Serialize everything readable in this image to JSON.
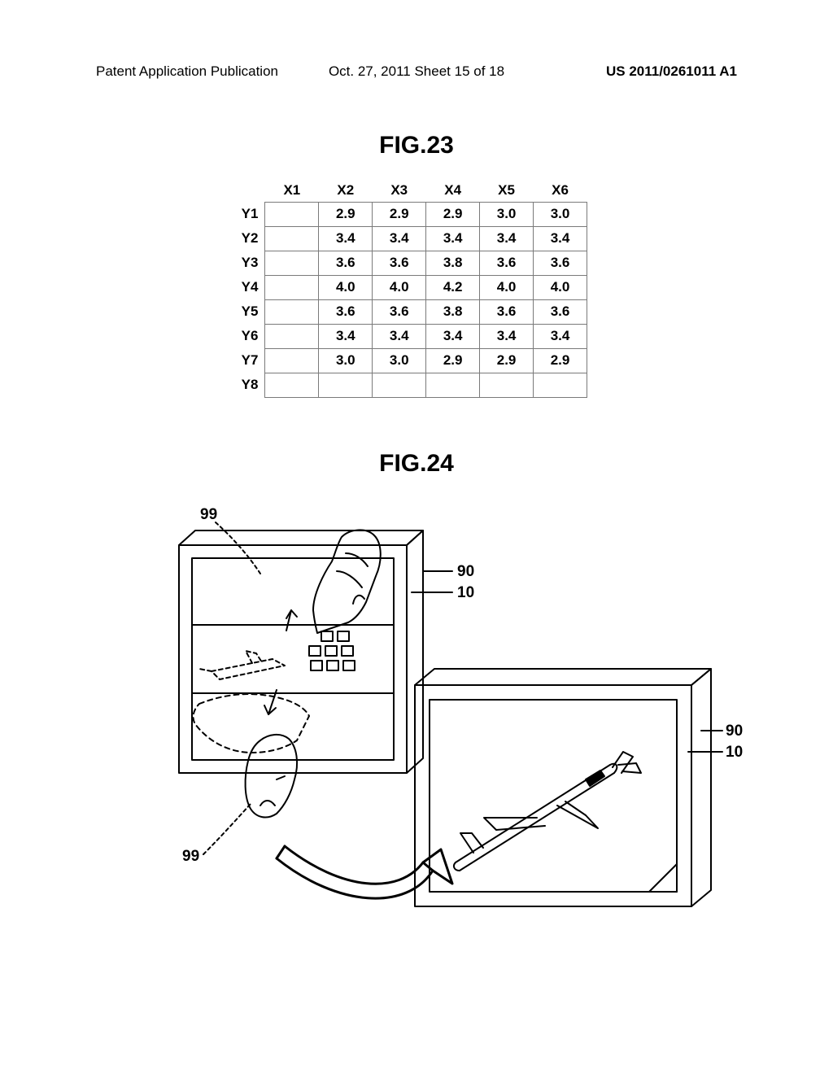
{
  "header": {
    "left": "Patent Application Publication",
    "mid": "Oct. 27, 2011  Sheet 15 of 18",
    "right": "US 2011/0261011 A1"
  },
  "fig23": {
    "title": "FIG.23",
    "columns": [
      "X1",
      "X2",
      "X3",
      "X4",
      "X5",
      "X6"
    ],
    "row_labels": [
      "Y1",
      "Y2",
      "Y3",
      "Y4",
      "Y5",
      "Y6",
      "Y7",
      "Y8"
    ],
    "rows": [
      [
        "",
        "2.9",
        "2.9",
        "2.9",
        "3.0",
        "3.0"
      ],
      [
        "",
        "3.4",
        "3.4",
        "3.4",
        "3.4",
        "3.4"
      ],
      [
        "",
        "3.6",
        "3.6",
        "3.8",
        "3.6",
        "3.6"
      ],
      [
        "",
        "4.0",
        "4.0",
        "4.2",
        "4.0",
        "4.0"
      ],
      [
        "",
        "3.6",
        "3.6",
        "3.8",
        "3.6",
        "3.6"
      ],
      [
        "",
        "3.4",
        "3.4",
        "3.4",
        "3.4",
        "3.4"
      ],
      [
        "",
        "3.0",
        "3.0",
        "2.9",
        "2.9",
        "2.9"
      ],
      [
        "",
        "",
        "",
        "",
        "",
        ""
      ]
    ],
    "border_color": "#7a7a7a",
    "font_size": 17,
    "font_weight": "bold"
  },
  "fig24": {
    "title": "FIG.24",
    "refs": {
      "r99_top": "99",
      "r99_bottom": "99",
      "r90_left": "90",
      "r10_left": "10",
      "r90_right": "90",
      "r10_right": "10"
    },
    "line_color": "#000000",
    "line_width": 2,
    "dash_pattern": "6,5"
  }
}
